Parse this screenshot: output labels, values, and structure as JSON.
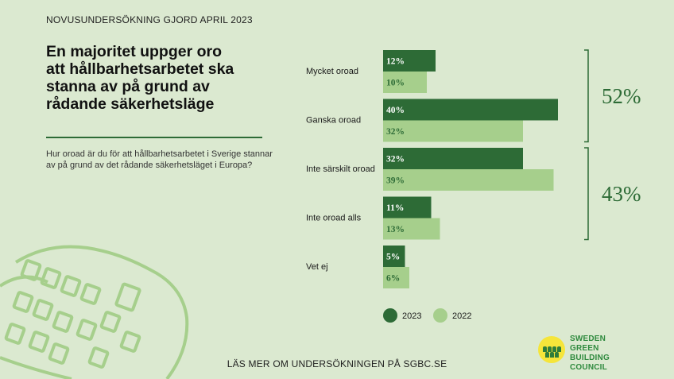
{
  "survey_tag": "NOVUSUNDERSÖKNING GJORD APRIL 2023",
  "headline": "En majoritet uppger oro att hållbarhetsarbetet ska stanna av på grund av rådande säkerhetsläge",
  "question": "Hur oroad är du för att hållbarhetsarbetet i Sverige stannar av på grund av det rådande säkerhetsläget i Europa?",
  "footer": "LÄS MER OM UNDERSÖKNINGEN PÅ SGBC.SE",
  "logo": {
    "line1": "SWEDEN",
    "line2": "GREEN BUILDING",
    "line3": "COUNCIL"
  },
  "colors": {
    "dark_green": "#2d6b36",
    "light_green": "#a6cf8c",
    "background": "#dbe9d0",
    "logo_yellow": "#f5e53a"
  },
  "chart_data": {
    "type": "bar",
    "orientation": "horizontal",
    "categories": [
      "Mycket oroad",
      "Ganska oroad",
      "Inte särskilt oroad",
      "Inte oroad alls",
      "Vet ej"
    ],
    "series": [
      {
        "name": "2023",
        "values": [
          12,
          40,
          32,
          11,
          5
        ],
        "labels": [
          "12%",
          "40%",
          "32%",
          "11%",
          "5%"
        ],
        "color": "#2d6b36"
      },
      {
        "name": "2022",
        "values": [
          10,
          32,
          39,
          13,
          6
        ],
        "labels": [
          "10%",
          "32%",
          "39%",
          "13%",
          "6%"
        ],
        "color": "#a6cf8c"
      }
    ],
    "groups": [
      {
        "categories": [
          "Mycket oroad",
          "Ganska oroad"
        ],
        "label": "52%"
      },
      {
        "categories": [
          "Inte särskilt oroad",
          "Inte oroad alls"
        ],
        "label": "43%"
      }
    ],
    "xlim": [
      0,
      40
    ],
    "grid": false,
    "legend": "bottom"
  }
}
